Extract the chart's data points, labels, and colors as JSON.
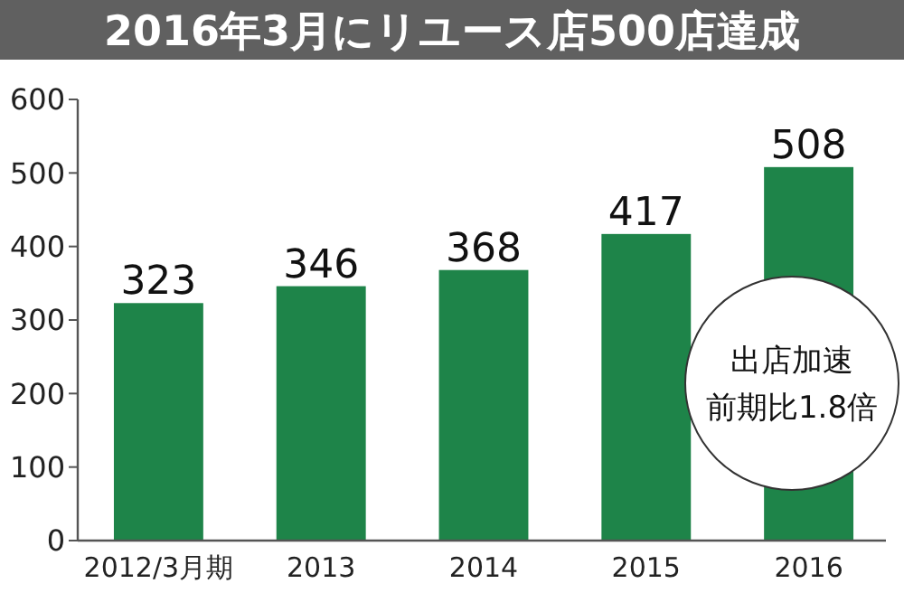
{
  "chart_data": {
    "type": "bar",
    "title": "2016年3月にリユース店500店達成",
    "categories": [
      "2012/3月期",
      "2013",
      "2014",
      "2015",
      "2016"
    ],
    "values": [
      323,
      346,
      368,
      417,
      508
    ],
    "color": "#1e8449",
    "ylim": [
      0,
      600
    ],
    "yticks": [
      0,
      100,
      200,
      300,
      400,
      500,
      600
    ],
    "grid": false,
    "data_labels": true,
    "annotations": [
      "出店加速",
      "前期比1.8倍"
    ]
  }
}
